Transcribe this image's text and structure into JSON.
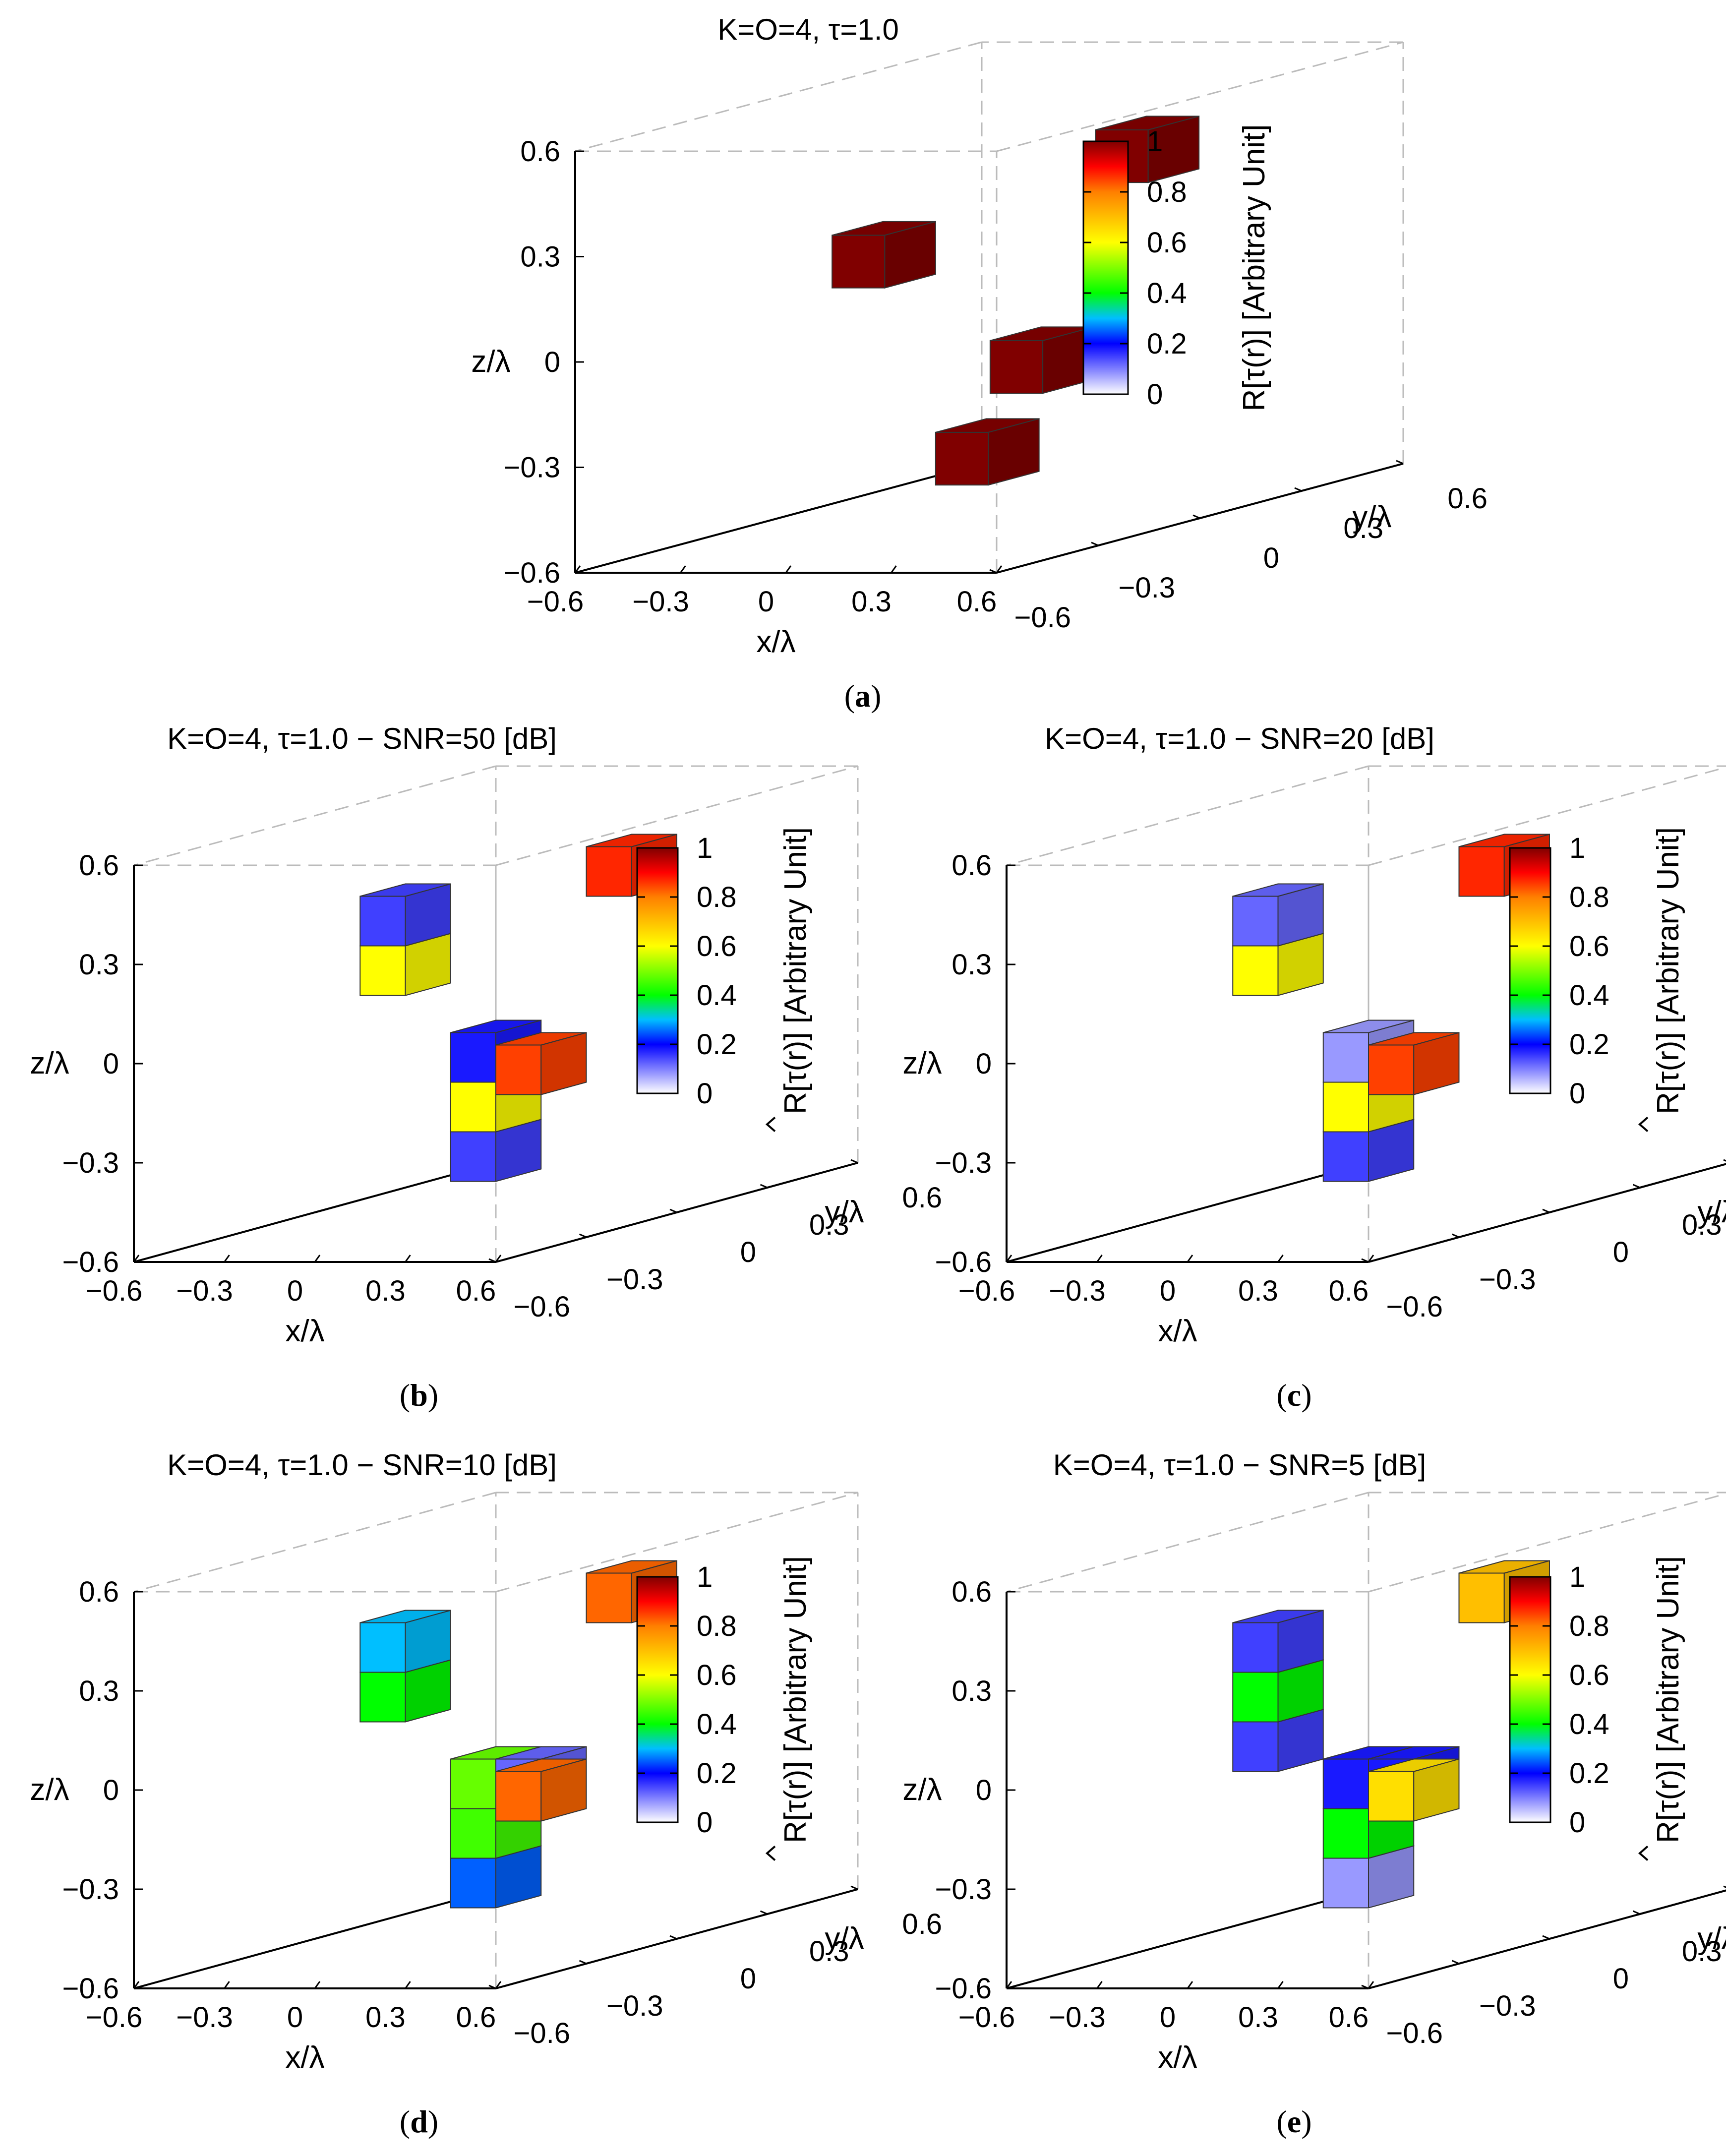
{
  "chart_data": [
    {
      "type": "3d-voxel",
      "panel": "a",
      "title": "K=O=4, τ=1.0",
      "xlabel": "x/λ",
      "ylabel": "y/λ",
      "zlabel": "z/λ",
      "colorbar_label": "R[τ(r)] [Arbitrary Unit]",
      "colorbar_hat": false,
      "ticks": [
        "−0.6",
        "−0.3",
        "0",
        "0.3",
        "0.6"
      ],
      "xlim": [
        -0.6,
        0.6
      ],
      "ylim": [
        -0.6,
        0.6
      ],
      "zlim": [
        -0.6,
        0.6
      ],
      "cbar_ticks": [
        "0",
        "0.2",
        "0.4",
        "0.6",
        "0.8",
        "1"
      ],
      "voxels": [
        {
          "x": -0.15,
          "y": 0.15,
          "z": -0.45,
          "value": 1.0
        },
        {
          "x": -0.3,
          "y": 0.0,
          "z": 0.15,
          "value": 1.0
        },
        {
          "x": 0.15,
          "y": 0.0,
          "z": -0.15,
          "value": 1.0
        },
        {
          "x": 0.45,
          "y": 0.0,
          "z": 0.45,
          "value": 1.0
        }
      ]
    },
    {
      "type": "3d-voxel",
      "panel": "b",
      "title": "K=O=4, τ=1.0 − SNR=50 [dB]",
      "xlabel": "x/λ",
      "ylabel": "y/λ",
      "zlabel": "z/λ",
      "colorbar_label": "R[τ(r)] [Arbitrary Unit]",
      "colorbar_hat": true,
      "ticks": [
        "−0.6",
        "−0.3",
        "0",
        "0.3",
        "0.6"
      ],
      "xlim": [
        -0.6,
        0.6
      ],
      "ylim": [
        -0.6,
        0.6
      ],
      "zlim": [
        -0.6,
        0.6
      ],
      "cbar_ticks": [
        "0",
        "0.2",
        "0.4",
        "0.6",
        "0.8",
        "1"
      ],
      "voxels": [
        {
          "x": -0.15,
          "y": 0.15,
          "z": -0.45,
          "value": 0.15
        },
        {
          "x": -0.15,
          "y": 0.15,
          "z": -0.3,
          "value": 0.6
        },
        {
          "x": -0.15,
          "y": 0.15,
          "z": -0.15,
          "value": 0.18
        },
        {
          "x": -0.3,
          "y": 0.0,
          "z": 0.15,
          "value": 0.6
        },
        {
          "x": -0.3,
          "y": 0.0,
          "z": 0.3,
          "value": 0.15
        },
        {
          "x": 0.15,
          "y": 0.0,
          "z": -0.15,
          "value": 0.85
        },
        {
          "x": 0.45,
          "y": 0.0,
          "z": 0.45,
          "value": 0.87
        }
      ]
    },
    {
      "type": "3d-voxel",
      "panel": "c",
      "title": "K=O=4, τ=1.0 − SNR=20 [dB]",
      "xlabel": "x/λ",
      "ylabel": "y/λ",
      "zlabel": "z/λ",
      "colorbar_label": "R[τ(r)] [Arbitrary Unit]",
      "colorbar_hat": true,
      "ticks": [
        "−0.6",
        "−0.3",
        "0",
        "0.3",
        "0.6"
      ],
      "xlim": [
        -0.6,
        0.6
      ],
      "ylim": [
        -0.6,
        0.6
      ],
      "zlim": [
        -0.6,
        0.6
      ],
      "cbar_ticks": [
        "0",
        "0.2",
        "0.4",
        "0.6",
        "0.8",
        "1"
      ],
      "voxels": [
        {
          "x": -0.15,
          "y": 0.15,
          "z": -0.45,
          "value": 0.15
        },
        {
          "x": -0.15,
          "y": 0.15,
          "z": -0.3,
          "value": 0.6
        },
        {
          "x": -0.15,
          "y": 0.15,
          "z": -0.15,
          "value": 0.08
        },
        {
          "x": -0.3,
          "y": 0.0,
          "z": 0.15,
          "value": 0.6
        },
        {
          "x": -0.3,
          "y": 0.0,
          "z": 0.3,
          "value": 0.12
        },
        {
          "x": 0.15,
          "y": 0.0,
          "z": -0.15,
          "value": 0.85
        },
        {
          "x": 0.45,
          "y": 0.0,
          "z": 0.45,
          "value": 0.87
        }
      ]
    },
    {
      "type": "3d-voxel",
      "panel": "d",
      "title": "K=O=4, τ=1.0 − SNR=10 [dB]",
      "xlabel": "x/λ",
      "ylabel": "y/λ",
      "zlabel": "z/λ",
      "colorbar_label": "R[τ(r)] [Arbitrary Unit]",
      "colorbar_hat": true,
      "ticks": [
        "−0.6",
        "−0.3",
        "0",
        "0.3",
        "0.6"
      ],
      "xlim": [
        -0.6,
        0.6
      ],
      "ylim": [
        -0.6,
        0.6
      ],
      "zlim": [
        -0.6,
        0.6
      ],
      "cbar_ticks": [
        "0",
        "0.2",
        "0.4",
        "0.6",
        "0.8",
        "1"
      ],
      "voxels": [
        {
          "x": -0.15,
          "y": 0.15,
          "z": -0.45,
          "value": 0.25
        },
        {
          "x": -0.15,
          "y": 0.15,
          "z": -0.3,
          "value": 0.45
        },
        {
          "x": -0.15,
          "y": 0.15,
          "z": -0.15,
          "value": 0.48
        },
        {
          "x": 0.0,
          "y": 0.15,
          "z": -0.15,
          "value": 0.12
        },
        {
          "x": -0.3,
          "y": 0.0,
          "z": 0.15,
          "value": 0.4
        },
        {
          "x": -0.3,
          "y": 0.0,
          "z": 0.3,
          "value": 0.3
        },
        {
          "x": 0.15,
          "y": 0.0,
          "z": -0.15,
          "value": 0.82
        },
        {
          "x": 0.45,
          "y": 0.0,
          "z": 0.45,
          "value": 0.82
        }
      ]
    },
    {
      "type": "3d-voxel",
      "panel": "e",
      "title": "K=O=4, τ=1.0 − SNR=5 [dB]",
      "xlabel": "x/λ",
      "ylabel": "y/λ",
      "zlabel": "z/λ",
      "colorbar_label": "R[τ(r)] [Arbitrary Unit]",
      "colorbar_hat": true,
      "ticks": [
        "−0.6",
        "−0.3",
        "0",
        "0.3",
        "0.6"
      ],
      "xlim": [
        -0.6,
        0.6
      ],
      "ylim": [
        -0.6,
        0.6
      ],
      "zlim": [
        -0.6,
        0.6
      ],
      "cbar_ticks": [
        "0",
        "0.2",
        "0.4",
        "0.6",
        "0.8",
        "1"
      ],
      "voxels": [
        {
          "x": -0.15,
          "y": 0.15,
          "z": -0.45,
          "value": 0.08
        },
        {
          "x": -0.15,
          "y": 0.15,
          "z": -0.3,
          "value": 0.4
        },
        {
          "x": -0.15,
          "y": 0.15,
          "z": -0.15,
          "value": 0.18
        },
        {
          "x": 0.0,
          "y": 0.15,
          "z": -0.15,
          "value": 0.18
        },
        {
          "x": -0.3,
          "y": 0.0,
          "z": 0.0,
          "value": 0.15
        },
        {
          "x": -0.3,
          "y": 0.0,
          "z": 0.15,
          "value": 0.4
        },
        {
          "x": -0.3,
          "y": 0.0,
          "z": 0.3,
          "value": 0.15
        },
        {
          "x": 0.15,
          "y": 0.0,
          "z": -0.15,
          "value": 0.65
        },
        {
          "x": 0.45,
          "y": 0.0,
          "z": 0.45,
          "value": 0.7
        }
      ]
    }
  ],
  "captions": [
    "a",
    "b",
    "c",
    "d",
    "e"
  ],
  "colormap": [
    "#ffffff",
    "#7f7fff",
    "#0000ff",
    "#00bfff",
    "#00ff00",
    "#7fff00",
    "#ffff00",
    "#ffbf00",
    "#ff7f00",
    "#ff0000",
    "#800000"
  ]
}
